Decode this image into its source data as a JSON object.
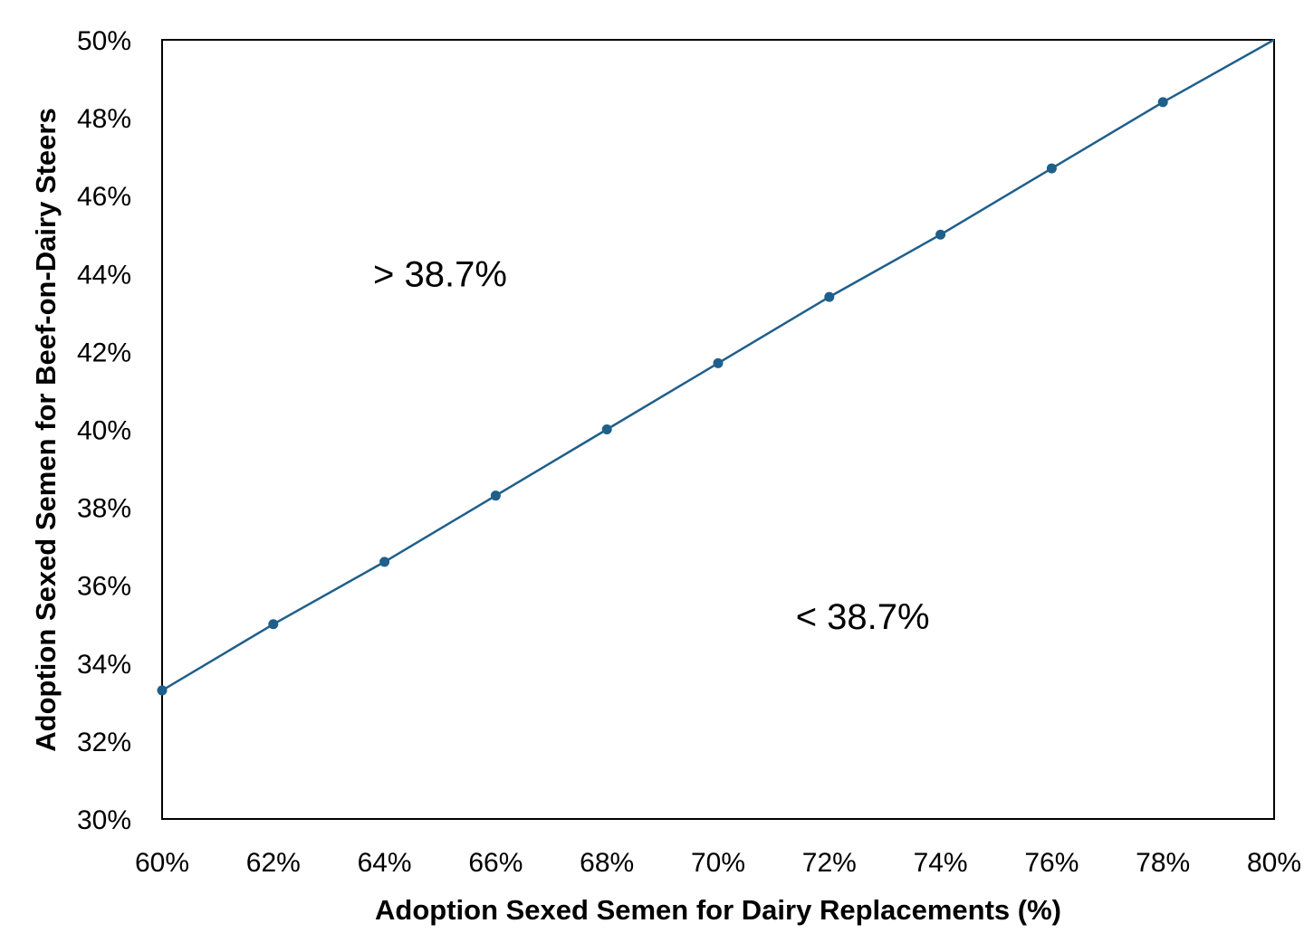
{
  "chart_data": {
    "type": "line",
    "title": "",
    "xlabel": "Adoption Sexed Semen for Dairy Replacements (%)",
    "ylabel": "Adoption Sexed Semen for Beef-on-Dairy Steers",
    "xlim": [
      60,
      80
    ],
    "ylim": [
      30,
      50
    ],
    "x_ticks": [
      60,
      62,
      64,
      66,
      68,
      70,
      72,
      74,
      76,
      78,
      80
    ],
    "x_tick_labels": [
      "60%",
      "62%",
      "64%",
      "66%",
      "68%",
      "70%",
      "72%",
      "74%",
      "76%",
      "78%",
      "80%"
    ],
    "y_ticks": [
      30,
      32,
      34,
      36,
      38,
      40,
      42,
      44,
      46,
      48,
      50
    ],
    "y_tick_labels": [
      "30%",
      "32%",
      "34%",
      "36%",
      "38%",
      "40%",
      "42%",
      "44%",
      "46%",
      "48%",
      "50%"
    ],
    "grid": false,
    "legend": "none",
    "series": [
      {
        "x": [
          60,
          62,
          64,
          66,
          68,
          70,
          72,
          74,
          76,
          78,
          80
        ],
        "y": [
          33.3,
          35.0,
          36.6,
          38.3,
          40.0,
          41.7,
          43.4,
          45.0,
          46.7,
          48.4,
          50.0
        ],
        "markers_at": [
          60,
          62,
          64,
          66,
          68,
          70,
          72,
          74,
          76,
          78
        ],
        "color": "#1f5f8b"
      }
    ],
    "annotations": [
      {
        "text": "> 38.7%",
        "x": 65.0,
        "y": 44.0
      },
      {
        "text": "< 38.7%",
        "x": 72.6,
        "y": 35.2
      }
    ]
  }
}
